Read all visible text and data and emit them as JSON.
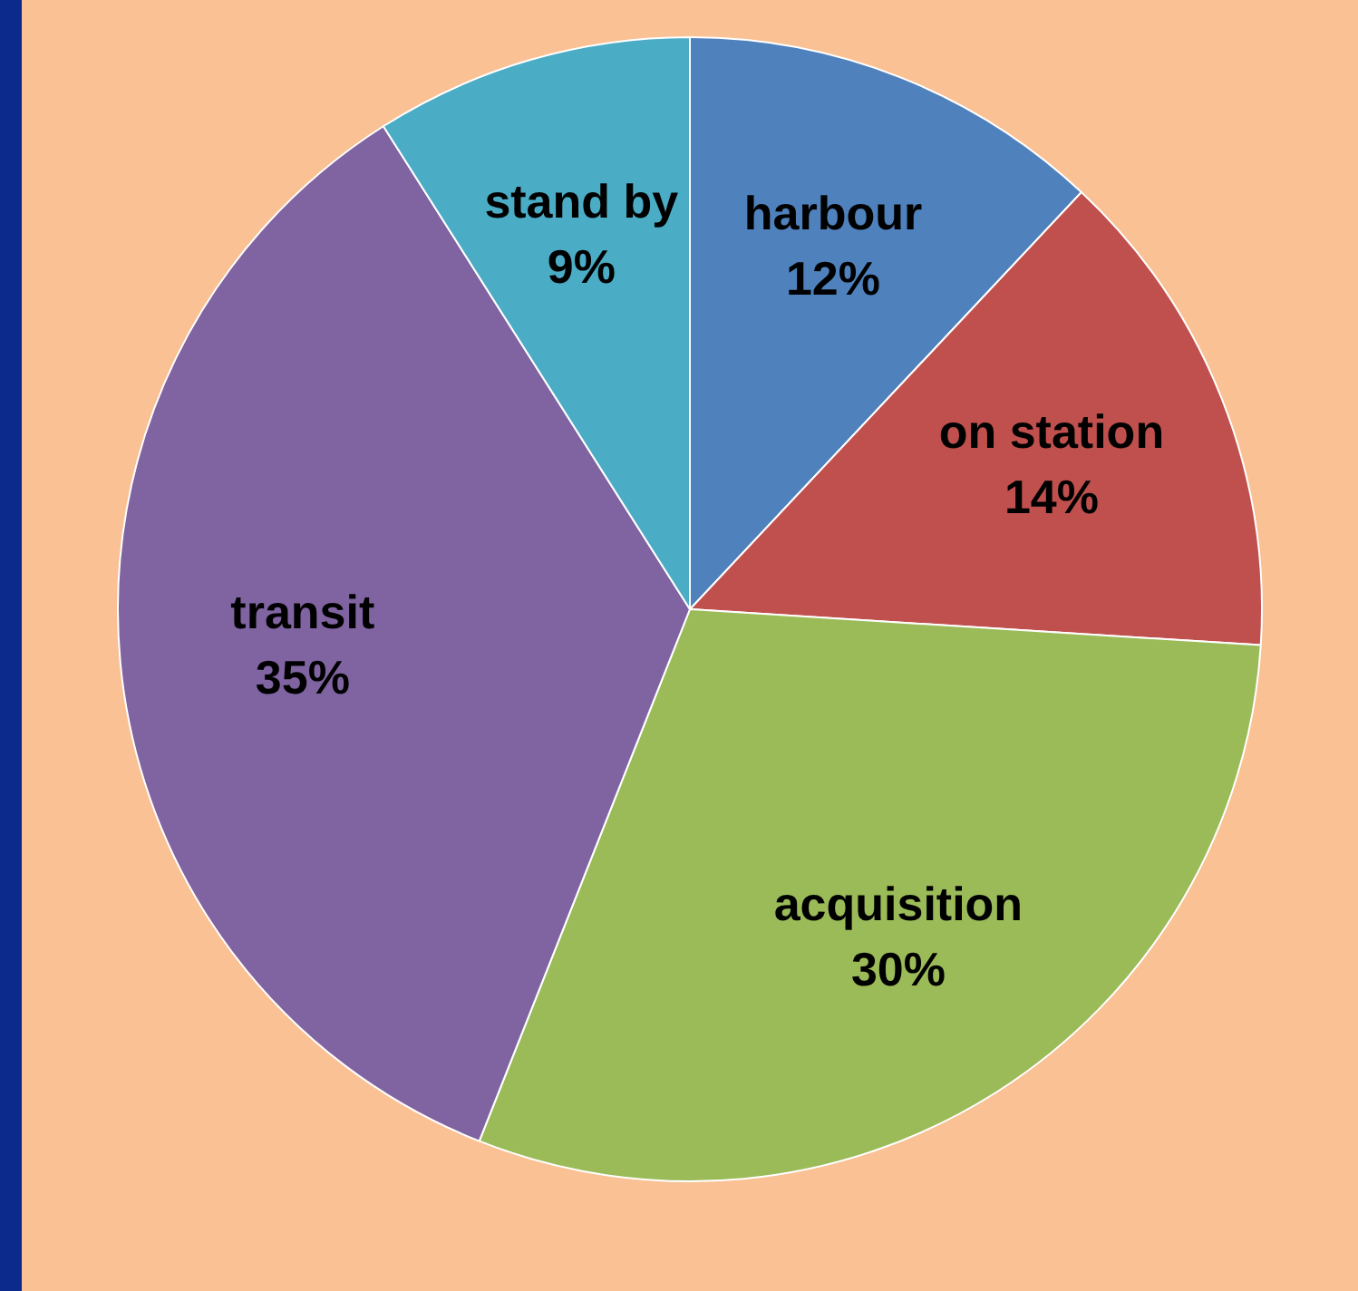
{
  "chart_data": {
    "type": "pie",
    "categories": [
      "harbour",
      "on station",
      "acquisition",
      "transit",
      "stand by"
    ],
    "values": [
      12,
      14,
      30,
      35,
      9
    ],
    "colors": [
      "#4f81bd",
      "#c0504d",
      "#9bbb59",
      "#8064a2",
      "#4bacc6"
    ],
    "value_labels": [
      "12%",
      "14%",
      "30%",
      "35%",
      "9%"
    ],
    "legend": false
  }
}
